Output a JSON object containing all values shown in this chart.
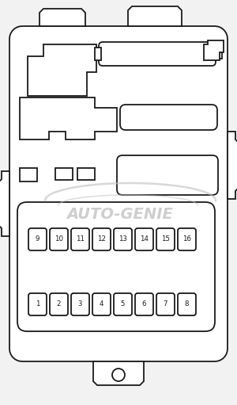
{
  "bg_color": "#f2f2f2",
  "line_color": "#1a1a1a",
  "wm_color": "#bebebe",
  "wm_text": "AUTO-GENIE",
  "fuse_top": [
    "9",
    "10",
    "11",
    "12",
    "13",
    "14",
    "15",
    "16"
  ],
  "fuse_bot": [
    "1",
    "2",
    "3",
    "4",
    "5",
    "6",
    "7",
    "8"
  ],
  "figsize": [
    3.0,
    5.11
  ],
  "dpi": 100
}
